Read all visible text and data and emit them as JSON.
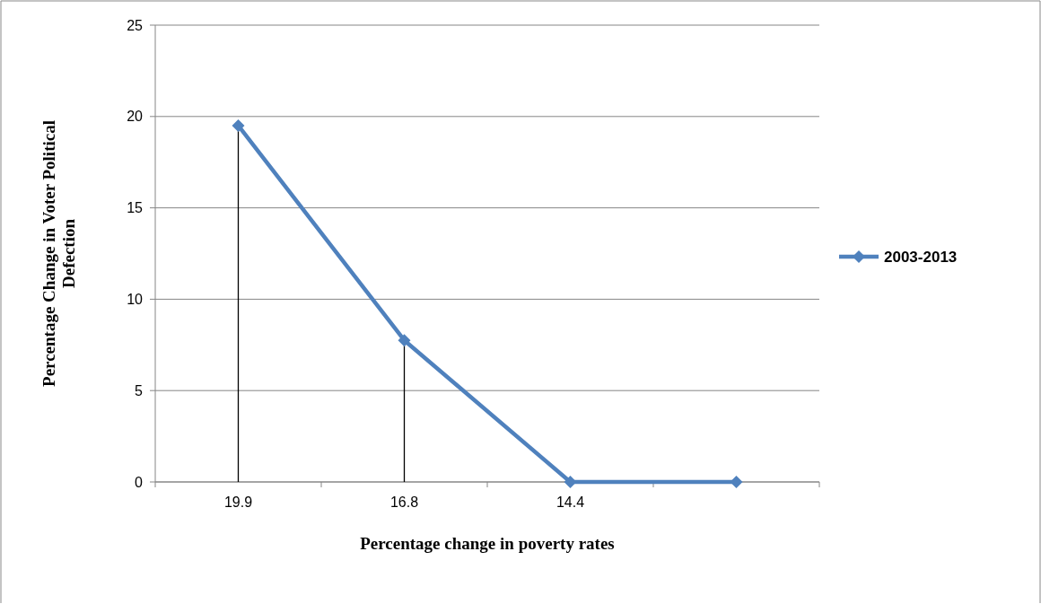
{
  "chart_data": {
    "type": "line",
    "xlabel": "Percentage change in poverty rates",
    "ylabel": "Percentage Change in Voter Political Defection",
    "categories": [
      "19.9",
      "16.8",
      "14.4",
      null
    ],
    "series": [
      {
        "name": "2003-2013",
        "color": "#4f81bd",
        "values": [
          19.5,
          7.75,
          0,
          0
        ],
        "errors": [
          [
            0,
            19.5
          ],
          [
            0,
            7.75
          ],
          null,
          null
        ]
      }
    ],
    "ylim": [
      0,
      25
    ],
    "yticks": [
      0,
      5,
      10,
      15,
      20,
      25
    ],
    "grid": "y",
    "legend": "right",
    "marker": "diamond",
    "line_style": "solid"
  }
}
